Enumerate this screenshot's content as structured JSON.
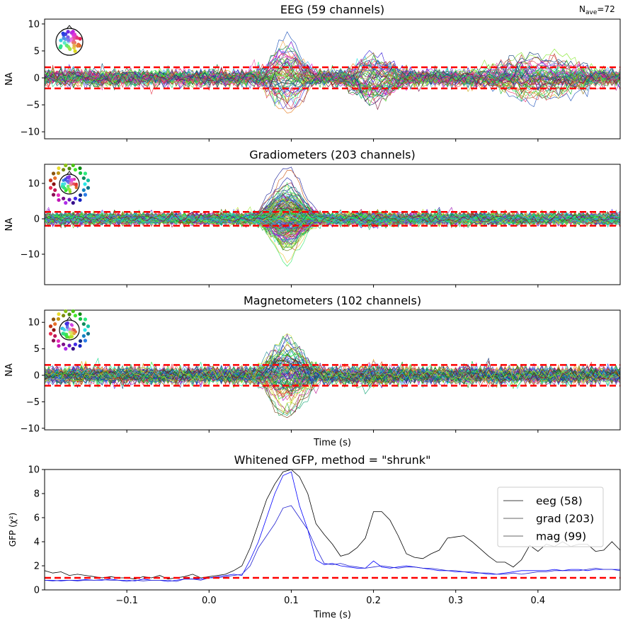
{
  "nave_label": {
    "prefix": "N",
    "sub": "ave",
    "suffix": "=72"
  },
  "chart_data": [
    {
      "type": "line",
      "title": "EEG (59 channels)",
      "ylabel": "NA",
      "xlabel": "",
      "channels": 59,
      "xlim": [
        -0.2,
        0.5
      ],
      "ylim": [
        -11.3,
        10.9
      ],
      "yticks": [
        10,
        5,
        0,
        -5,
        -10
      ],
      "xticks": [
        -0.1,
        0.0,
        0.1,
        0.2,
        0.3,
        0.4
      ],
      "threshold": [
        1.96,
        -1.96
      ],
      "threshold_color": "#ff0000",
      "sensor_inset": "head-topomap-colored-dots"
    },
    {
      "type": "line",
      "title": "Gradiometers (203 channels)",
      "ylabel": "NA",
      "xlabel": "",
      "channels": 203,
      "xlim": [
        -0.2,
        0.5
      ],
      "ylim": [
        -18.6,
        15.4
      ],
      "yticks": [
        10,
        0,
        -10
      ],
      "xticks": [
        -0.1,
        0.0,
        0.1,
        0.2,
        0.3,
        0.4
      ],
      "threshold": [
        1.96,
        -1.96
      ],
      "threshold_color": "#ff0000",
      "sensor_inset": "head-topomap-colored-dots"
    },
    {
      "type": "line",
      "title": "Magnetometers (102 channels)",
      "ylabel": "NA",
      "xlabel": "Time (s)",
      "channels": 102,
      "xlim": [
        -0.2,
        0.5
      ],
      "ylim": [
        -10.3,
        12.3
      ],
      "yticks": [
        10,
        5,
        0,
        -5,
        -10
      ],
      "xticks": [
        -0.1,
        0.0,
        0.1,
        0.2,
        0.3,
        0.4
      ],
      "threshold": [
        1.96,
        -1.96
      ],
      "threshold_color": "#ff0000",
      "sensor_inset": "head-topomap-colored-dots"
    },
    {
      "type": "line",
      "title": "Whitened GFP, method = \"shrunk\"",
      "ylabel": "GFP (χ²)",
      "xlabel": "Time (s)",
      "xlim": [
        -0.2,
        0.5
      ],
      "ylim": [
        0,
        10
      ],
      "yticks": [
        0,
        2,
        4,
        6,
        8,
        10
      ],
      "xticks": [
        -0.1,
        0.0,
        0.1,
        0.2,
        0.3,
        0.4
      ],
      "xticklabels": [
        "−0.1",
        "0.0",
        "0.1",
        "0.2",
        "0.3",
        "0.4"
      ],
      "threshold": [
        1.0
      ],
      "threshold_color": "#ff0000",
      "legend_position": "upper-right",
      "x_start": -0.2,
      "x_step": 0.01,
      "series": [
        {
          "name": "eeg (58)",
          "color": "#000000",
          "values": [
            1.6,
            1.4,
            1.5,
            1.2,
            1.3,
            1.2,
            1.1,
            1.0,
            1.1,
            1.0,
            1.0,
            0.9,
            1.1,
            1.0,
            1.2,
            0.9,
            1.0,
            1.1,
            1.3,
            1.0,
            1.1,
            1.2,
            1.3,
            1.6,
            2.0,
            3.5,
            5.5,
            7.5,
            8.8,
            9.8,
            10.0,
            9.4,
            8.0,
            5.5,
            4.6,
            3.8,
            2.8,
            3.0,
            3.5,
            4.3,
            6.5,
            6.5,
            5.8,
            4.5,
            3.0,
            2.7,
            2.6,
            3.0,
            3.3,
            4.3,
            4.4,
            4.5,
            4.0,
            3.4,
            2.8,
            2.3,
            2.3,
            1.9,
            2.5,
            3.7,
            3.2,
            3.8,
            3.6,
            4.0,
            3.6,
            3.8,
            3.8,
            3.2,
            3.3,
            4.0,
            3.3
          ]
        },
        {
          "name": "grad (203)",
          "color": "#0000ff",
          "values": [
            0.8,
            0.8,
            0.75,
            0.8,
            0.8,
            0.85,
            0.8,
            0.8,
            0.9,
            0.8,
            0.8,
            0.75,
            0.9,
            0.8,
            0.8,
            0.7,
            0.8,
            0.9,
            0.9,
            0.9,
            1.0,
            1.1,
            1.2,
            1.3,
            1.2,
            2.5,
            4.0,
            6.0,
            8.0,
            9.5,
            9.8,
            7.0,
            5.0,
            2.5,
            2.1,
            2.2,
            2.0,
            1.9,
            1.8,
            1.8,
            2.4,
            1.9,
            1.8,
            1.9,
            2.0,
            1.9,
            1.8,
            1.7,
            1.6,
            1.6,
            1.5,
            1.5,
            1.4,
            1.4,
            1.3,
            1.3,
            1.4,
            1.5,
            1.6,
            1.6,
            1.6,
            1.6,
            1.7,
            1.6,
            1.7,
            1.7,
            1.6,
            1.7,
            1.7,
            1.7,
            1.7
          ]
        },
        {
          "name": "mag (99)",
          "color": "#2020d0",
          "values": [
            0.8,
            0.75,
            0.8,
            0.8,
            0.75,
            0.8,
            0.8,
            0.85,
            0.8,
            0.8,
            0.7,
            0.8,
            0.75,
            0.8,
            0.8,
            0.8,
            0.7,
            0.9,
            0.9,
            0.8,
            1.0,
            1.0,
            1.1,
            1.2,
            1.3,
            2.0,
            3.5,
            4.5,
            5.5,
            6.8,
            7.0,
            6.0,
            5.0,
            3.5,
            2.2,
            2.1,
            2.2,
            2.0,
            1.9,
            1.8,
            1.9,
            2.0,
            1.9,
            1.8,
            1.9,
            1.9,
            1.8,
            1.8,
            1.7,
            1.6,
            1.6,
            1.5,
            1.5,
            1.4,
            1.4,
            1.3,
            1.3,
            1.4,
            1.3,
            1.4,
            1.5,
            1.5,
            1.6,
            1.6,
            1.6,
            1.6,
            1.7,
            1.8,
            1.7,
            1.7,
            1.6
          ]
        }
      ]
    }
  ]
}
